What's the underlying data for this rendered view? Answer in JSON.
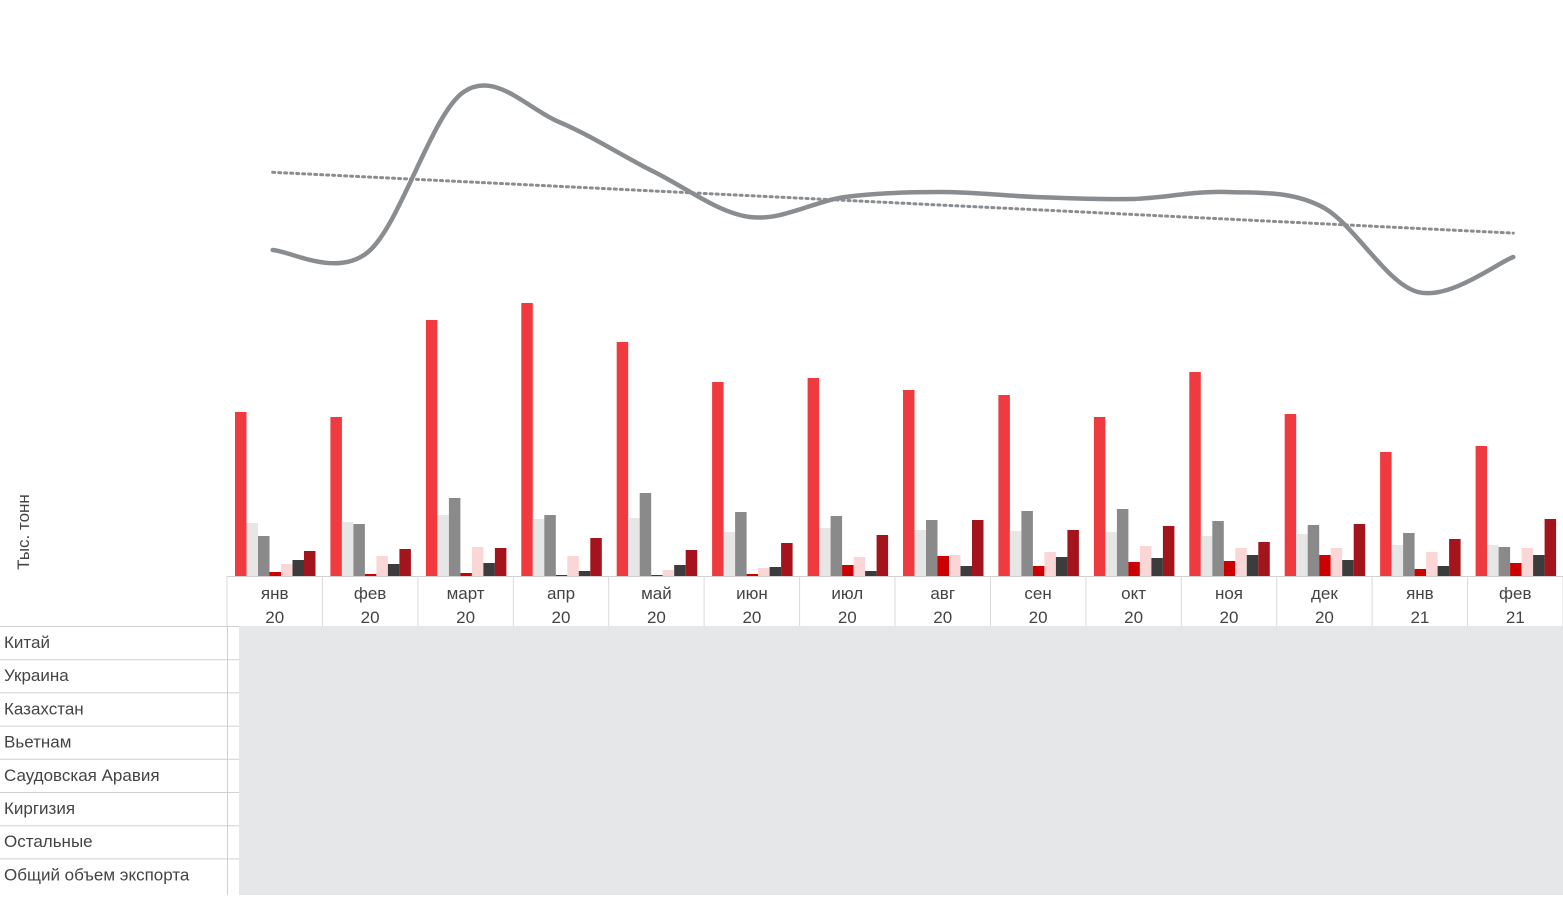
{
  "chart_data": {
    "type": "bar",
    "ylabel": "Тыс. тонн",
    "categories": [
      [
        "янв",
        "20"
      ],
      [
        "фев",
        "20"
      ],
      [
        "март",
        "20"
      ],
      [
        "апр",
        "20"
      ],
      [
        "май",
        "20"
      ],
      [
        "июн",
        "20"
      ],
      [
        "июл",
        "20"
      ],
      [
        "авг",
        "20"
      ],
      [
        "сен",
        "20"
      ],
      [
        "окт",
        "20"
      ],
      [
        "ноя",
        "20"
      ],
      [
        "дек",
        "20"
      ],
      [
        "янв",
        "21"
      ],
      [
        "фев",
        "21"
      ]
    ],
    "series": [
      {
        "name": "Китай",
        "color": "#ef3b3f",
        "values": [
          164,
          159,
          256,
          273,
          234,
          194,
          198,
          186,
          181,
          159,
          204,
          162,
          124,
          130
        ]
      },
      {
        "name": "Украина",
        "color": "#e6e6e6",
        "values": [
          53,
          54,
          61,
          57,
          58,
          44,
          48,
          46,
          45,
          44,
          40,
          42,
          31,
          31
        ]
      },
      {
        "name": "Казахстан",
        "color": "#8a8a8a",
        "values": [
          40,
          52,
          78,
          61,
          83,
          64,
          60,
          56,
          65,
          67,
          55,
          51,
          43,
          29
        ]
      },
      {
        "name": "Вьетнам",
        "color": "#cc0000",
        "values": [
          4,
          2,
          3,
          1,
          1,
          2,
          11,
          20,
          10,
          14,
          15,
          21,
          7,
          13
        ]
      },
      {
        "name": "Саудовская Аравия",
        "color": "#fbd6d7",
        "values": [
          12,
          20,
          29,
          20,
          6,
          8,
          19,
          21,
          24,
          30,
          28,
          28,
          24,
          28
        ]
      },
      {
        "name": "Киргизия",
        "color": "#3c3c3c",
        "values": [
          16,
          12,
          13,
          5,
          11,
          9,
          5,
          10,
          19,
          18,
          21,
          16,
          10,
          21
        ]
      },
      {
        "name": "Остальные",
        "color": "#a3141c",
        "values": [
          25,
          27,
          28,
          38,
          26,
          33,
          41,
          56,
          46,
          50,
          34,
          52,
          37,
          57
        ]
      }
    ],
    "total_line": {
      "name": "Общий объем экспорта",
      "color": "#8a8d90",
      "values": [
        342,
        340,
        500,
        470,
        420,
        375,
        395,
        400,
        395,
        393,
        400,
        385,
        300,
        335
      ],
      "trendline": {
        "style": "dotted",
        "color": "#8a8d90"
      }
    },
    "data_table": {
      "rows": [
        "Китай",
        "Украина",
        "Казахстан",
        "Вьетнам",
        "Саудовская Аравия",
        "Киргизия",
        "Остальные",
        "Общий объем экспорта"
      ],
      "fill_color": "#e6e7e9"
    },
    "grid": false,
    "legend": "none"
  }
}
